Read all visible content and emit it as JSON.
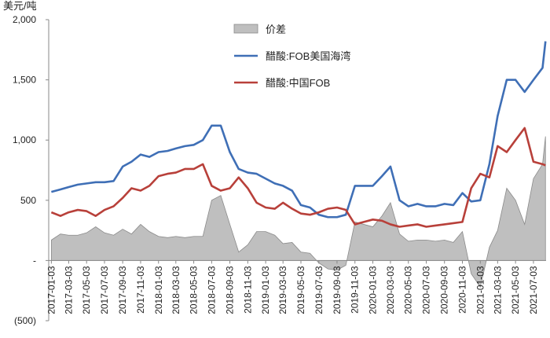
{
  "chart_data": {
    "type": "line",
    "y_label": "美元/吨",
    "x": [
      "2017-01-03",
      "2017-02-03",
      "2017-03-03",
      "2017-04-03",
      "2017-05-03",
      "2017-06-03",
      "2017-07-03",
      "2017-08-03",
      "2017-09-03",
      "2017-10-03",
      "2017-11-03",
      "2017-12-03",
      "2018-01-03",
      "2018-02-03",
      "2018-03-03",
      "2018-04-03",
      "2018-05-03",
      "2018-06-03",
      "2018-07-03",
      "2018-08-03",
      "2018-09-03",
      "2018-10-03",
      "2018-11-03",
      "2018-12-03",
      "2019-01-03",
      "2019-02-03",
      "2019-03-03",
      "2019-04-03",
      "2019-05-03",
      "2019-06-03",
      "2019-07-03",
      "2019-08-03",
      "2019-09-03",
      "2019-10-03",
      "2019-11-03",
      "2019-12-03",
      "2020-01-03",
      "2020-02-03",
      "2020-03-03",
      "2020-04-03",
      "2020-05-03",
      "2020-06-03",
      "2020-07-03",
      "2020-08-03",
      "2020-09-03",
      "2020-10-03",
      "2020-11-03",
      "2020-12-03",
      "2021-01-03",
      "2021-02-03",
      "2021-03-03",
      "2021-04-03",
      "2021-05-03",
      "2021-06-03",
      "2021-07-03",
      "2021-08-03",
      "2021-08-13"
    ],
    "series": [
      {
        "name": "价差",
        "kind": "area",
        "color": "#bfbfbf",
        "values": [
          170,
          220,
          210,
          210,
          230,
          280,
          230,
          210,
          260,
          220,
          300,
          240,
          200,
          190,
          200,
          190,
          200,
          200,
          500,
          540,
          300,
          70,
          130,
          240,
          240,
          210,
          140,
          150,
          70,
          60,
          -20,
          -70,
          -80,
          -40,
          320,
          300,
          280,
          370,
          480,
          220,
          160,
          170,
          170,
          160,
          170,
          150,
          240,
          -110,
          -220,
          110,
          250,
          600,
          500,
          300,
          680,
          800,
          1030
        ]
      },
      {
        "name": "醋酸:FOB美国海湾",
        "kind": "line",
        "color": "#3f6fb6",
        "values": [
          570,
          590,
          610,
          630,
          640,
          650,
          650,
          660,
          780,
          820,
          880,
          860,
          900,
          910,
          930,
          950,
          960,
          1000,
          1120,
          1120,
          900,
          760,
          730,
          720,
          680,
          640,
          620,
          580,
          460,
          440,
          380,
          360,
          360,
          380,
          620,
          620,
          620,
          700,
          780,
          500,
          450,
          470,
          450,
          450,
          470,
          460,
          560,
          490,
          500,
          800,
          1200,
          1500,
          1500,
          1400,
          1500,
          1600,
          1820
        ]
      },
      {
        "name": "醋酸:中国FOB",
        "kind": "line",
        "color": "#b8403a",
        "values": [
          400,
          370,
          400,
          420,
          410,
          370,
          420,
          450,
          520,
          600,
          580,
          620,
          700,
          720,
          730,
          760,
          760,
          800,
          620,
          580,
          600,
          690,
          600,
          480,
          440,
          430,
          480,
          430,
          390,
          380,
          400,
          430,
          440,
          420,
          300,
          320,
          340,
          330,
          300,
          280,
          290,
          300,
          280,
          290,
          300,
          310,
          320,
          600,
          720,
          690,
          950,
          900,
          1000,
          1100,
          820,
          800,
          790
        ]
      }
    ],
    "xlim": [
      "2016-12-25",
      "2021-08-15"
    ],
    "xticks": [
      "2017-01-03",
      "2017-03-03",
      "2017-05-03",
      "2017-07-03",
      "2017-09-03",
      "2017-11-03",
      "2018-01-03",
      "2018-03-03",
      "2018-05-03",
      "2018-07-03",
      "2018-09-03",
      "2018-11-03",
      "2019-01-03",
      "2019-03-03",
      "2019-05-03",
      "2019-07-03",
      "2019-09-03",
      "2019-11-03",
      "2020-01-03",
      "2020-03-03",
      "2020-05-03",
      "2020-07-03",
      "2020-09-03",
      "2020-11-03",
      "2021-01-03",
      "2021-03-03",
      "2021-05-03",
      "2021-07-03"
    ],
    "ylim": [
      -500,
      2000
    ],
    "yticks": [
      {
        "value": -500,
        "label": "(500)"
      },
      {
        "value": 0,
        "label": "-"
      },
      500,
      {
        "value": 1000,
        "label": "1,000"
      },
      {
        "value": 1500,
        "label": "1,500"
      },
      {
        "value": 2000,
        "label": "2,000"
      }
    ]
  }
}
